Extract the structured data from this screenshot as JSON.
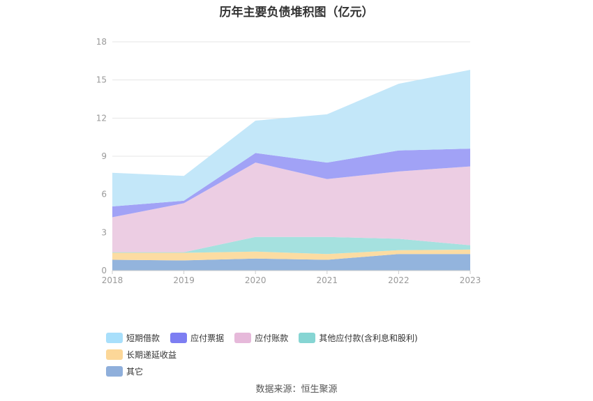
{
  "chart_data": {
    "type": "area",
    "title": "历年主要负债堆积图（亿元）",
    "categories": [
      "2018",
      "2019",
      "2020",
      "2021",
      "2022",
      "2023"
    ],
    "ylim": [
      0,
      18
    ],
    "yticks": [
      0,
      3,
      6,
      9,
      12,
      15,
      18
    ],
    "stacked": true,
    "grid": true,
    "legend_position": "bottom",
    "series": [
      {
        "name": "其它",
        "color": "#93b4dd",
        "values": [
          0.85,
          0.8,
          0.95,
          0.85,
          1.3,
          1.3
        ]
      },
      {
        "name": "长期递延收益",
        "color": "#fcdca2",
        "values": [
          0.55,
          0.6,
          0.55,
          0.45,
          0.3,
          0.35
        ]
      },
      {
        "name": "其他应付款(含利息和股利)",
        "color": "#a5e1df",
        "values": [
          0.05,
          0.05,
          1.15,
          1.35,
          0.9,
          0.35
        ]
      },
      {
        "name": "应付账款",
        "color": "#eccde3",
        "values": [
          2.75,
          3.85,
          5.85,
          4.55,
          5.3,
          6.2
        ]
      },
      {
        "name": "应付票据",
        "color": "#a1a2f6",
        "values": [
          0.85,
          0.2,
          0.75,
          1.3,
          1.65,
          1.4
        ]
      },
      {
        "name": "短期借款",
        "color": "#c3e7f9",
        "values": [
          2.65,
          1.95,
          2.55,
          3.8,
          5.25,
          6.2
        ]
      }
    ]
  },
  "legend": {
    "items": [
      {
        "label": "短期借款",
        "color": "#a8dffb"
      },
      {
        "label": "应付票据",
        "color": "#7d7ef2"
      },
      {
        "label": "应付账款",
        "color": "#e6b9da"
      },
      {
        "label": "其他应付款(含利息和股利)",
        "color": "#86d5d3"
      },
      {
        "label": "长期递延收益",
        "color": "#fcd798"
      },
      {
        "label": "其它",
        "color": "#8fafdb"
      }
    ]
  },
  "source": "数据来源：恒生聚源"
}
